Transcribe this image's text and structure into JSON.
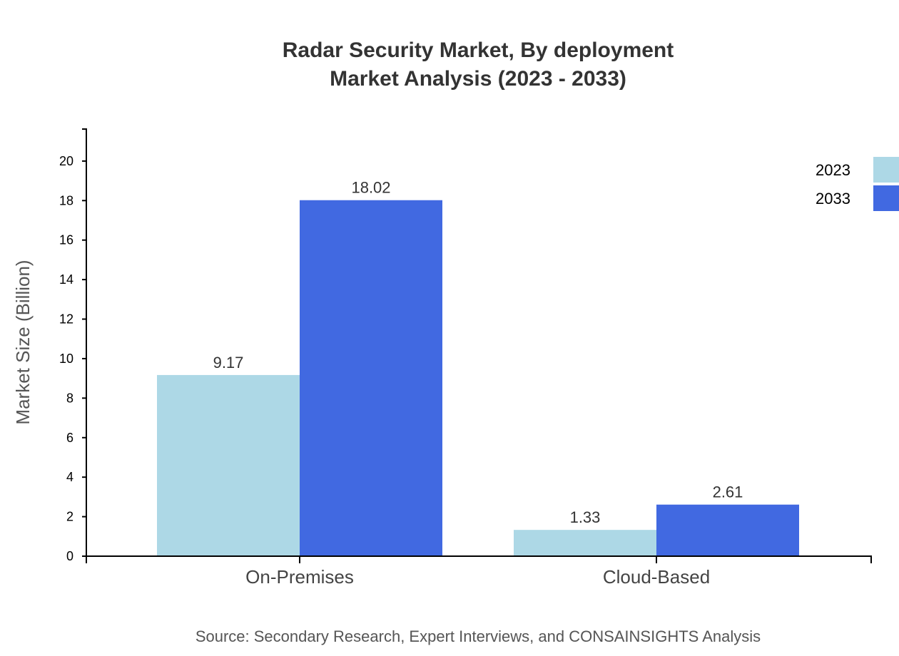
{
  "chart_data": {
    "type": "bar",
    "title": "Radar Security Market, By deployment",
    "subtitle": "Market Analysis (2023 - 2033)",
    "xlabel": "",
    "ylabel": "Market Size (Billion)",
    "categories": [
      "On-Premises",
      "Cloud-Based"
    ],
    "series": [
      {
        "name": "2023",
        "values": [
          9.17,
          1.33
        ],
        "color": "#add8e6"
      },
      {
        "name": "2033",
        "values": [
          18.02,
          2.61
        ],
        "color": "#4169e1"
      }
    ],
    "ylim": [
      0,
      21.62
    ],
    "yticks": [
      0,
      2,
      4,
      6,
      8,
      10,
      12,
      14,
      16,
      18,
      20
    ],
    "grid": false,
    "legend_position": "top-right",
    "source": "Source: Secondary Research, Expert Interviews, and CONSAINSIGHTS Analysis"
  }
}
